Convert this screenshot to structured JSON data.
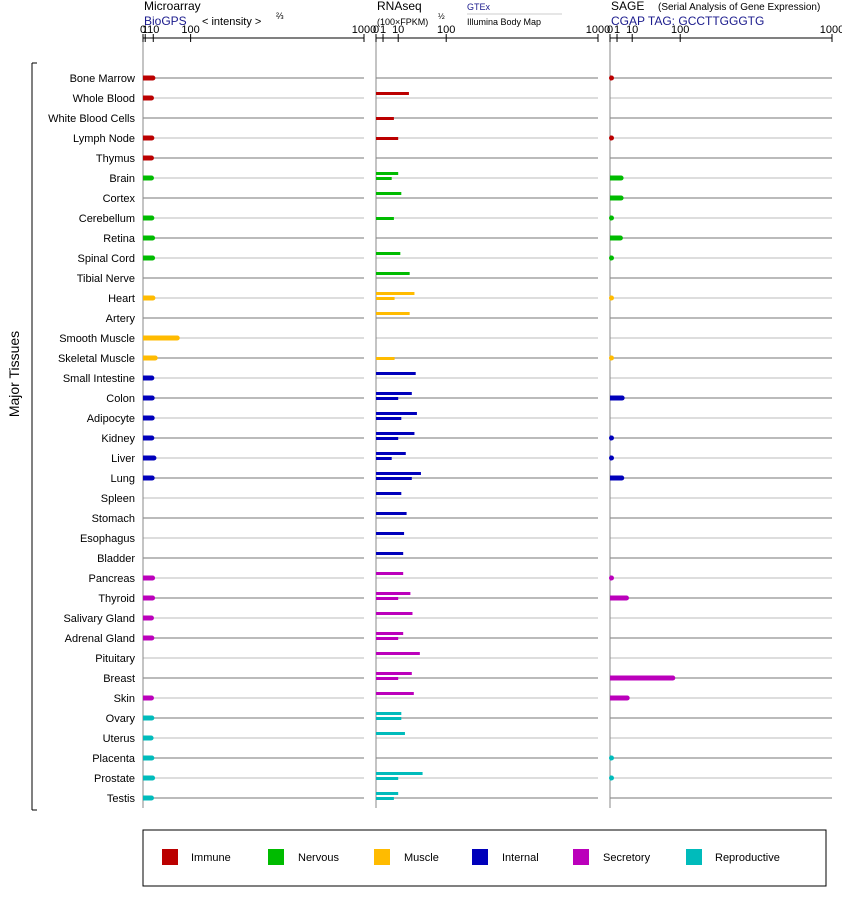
{
  "axis_label": "Major Tissues",
  "panels": [
    {
      "title": "Microarray",
      "subtitle": "BioGPS",
      "measure": "< intensity >",
      "exponent": "⅔"
    },
    {
      "title": "RNAseq",
      "measure": "(100×FPKM)",
      "exponent": "½",
      "sources": [
        "GTEx",
        "Illumina Body Map"
      ]
    },
    {
      "title": "SAGE",
      "note": "(Serial Analysis of Gene Expression)",
      "subtitle": "CGAP  TAG: GCCTTGGGTG"
    }
  ],
  "ticks": [
    "0",
    "1",
    "10",
    "100",
    "1000"
  ],
  "colors": {
    "Immune": "#bb0000",
    "Nervous": "#00bb00",
    "Muscle": "#ffbb00",
    "Internal": "#0000bb",
    "Secretory": "#bb00bb",
    "Reproductive": "#00bbbb"
  },
  "legend": [
    "Immune",
    "Nervous",
    "Muscle",
    "Internal",
    "Secretory",
    "Reproductive"
  ],
  "chart_data": {
    "type": "bar",
    "x_scale": "power",
    "x_ticks": [
      0,
      1,
      10,
      100,
      1000
    ],
    "series_names": [
      "Microarray",
      "RNAseq GTEx",
      "RNAseq Illumina Body Map",
      "SAGE"
    ],
    "categories": [
      "Bone Marrow",
      "Whole Blood",
      "White Blood Cells",
      "Lymph Node",
      "Thymus",
      "Brain",
      "Cortex",
      "Cerebellum",
      "Retina",
      "Spinal Cord",
      "Tibial Nerve",
      "Heart",
      "Artery",
      "Smooth Muscle",
      "Skeletal Muscle",
      "Small Intestine",
      "Colon",
      "Adipocyte",
      "Kidney",
      "Liver",
      "Lung",
      "Spleen",
      "Stomach",
      "Esophagus",
      "Bladder",
      "Pancreas",
      "Thyroid",
      "Salivary Gland",
      "Adrenal Gland",
      "Pituitary",
      "Breast",
      "Skin",
      "Ovary",
      "Uterus",
      "Placenta",
      "Prostate",
      "Testis"
    ],
    "groups": [
      "Immune",
      "Immune",
      "Immune",
      "Immune",
      "Immune",
      "Nervous",
      "Nervous",
      "Nervous",
      "Nervous",
      "Nervous",
      "Nervous",
      "Muscle",
      "Muscle",
      "Muscle",
      "Muscle",
      "Internal",
      "Internal",
      "Internal",
      "Internal",
      "Internal",
      "Internal",
      "Internal",
      "Internal",
      "Internal",
      "Internal",
      "Secretory",
      "Secretory",
      "Secretory",
      "Secretory",
      "Secretory",
      "Secretory",
      "Secretory",
      "Reproductive",
      "Reproductive",
      "Reproductive",
      "Reproductive",
      "Reproductive"
    ],
    "microarray": [
      9.5,
      7.5,
      null,
      8,
      7.5,
      7.5,
      null,
      8,
      9,
      9,
      null,
      9.5,
      null,
      61,
      13,
      8,
      8.5,
      8.5,
      8,
      11,
      8.5,
      null,
      null,
      null,
      null,
      9,
      9,
      7.5,
      8,
      null,
      null,
      7.5,
      8,
      7,
      8,
      9,
      7.5
    ],
    "rnaseq_gtex": [
      null,
      22,
      null,
      null,
      null,
      10,
      13,
      null,
      null,
      12,
      23,
      30,
      23,
      null,
      null,
      32,
      26,
      34,
      30,
      18,
      41,
      13,
      19,
      16,
      15,
      15,
      24,
      27,
      15,
      39,
      26,
      29,
      13,
      17,
      null,
      44,
      10
    ],
    "rnaseq_illumina": [
      null,
      null,
      6.5,
      10,
      null,
      5,
      null,
      6.5,
      null,
      null,
      null,
      7,
      null,
      null,
      7,
      null,
      10,
      13,
      10,
      5,
      26,
      null,
      null,
      null,
      null,
      null,
      10,
      null,
      10,
      null,
      10,
      null,
      13,
      null,
      null,
      10,
      6.5
    ],
    "sage": [
      0.01,
      null,
      null,
      0.01,
      null,
      2.5,
      2.5,
      0.01,
      2.2,
      0.01,
      null,
      0.01,
      null,
      null,
      0.01,
      null,
      3,
      null,
      0.01,
      0.01,
      2.8,
      null,
      null,
      null,
      null,
      0.01,
      5.5,
      null,
      null,
      null,
      80,
      6,
      null,
      null,
      0.01,
      0.01,
      null
    ]
  }
}
